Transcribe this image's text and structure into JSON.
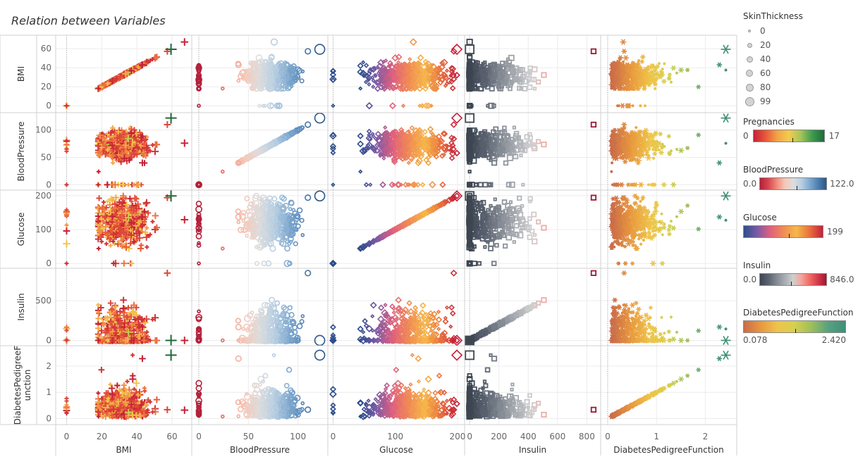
{
  "title": "Relation between Variables",
  "chart_data": {
    "type": "scatter",
    "subtype": "scatter-matrix",
    "variables": [
      {
        "name": "BMI",
        "domain": [
          -5,
          70
        ],
        "ticks": [
          0,
          20,
          40,
          60
        ],
        "shape": "plus",
        "color_field": "Pregnancies"
      },
      {
        "name": "BloodPressure",
        "domain": [
          -5,
          128
        ],
        "ticks": [
          0,
          50,
          100
        ],
        "shape": "circle",
        "color_field": "BloodPressure"
      },
      {
        "name": "Glucose",
        "domain": [
          -5,
          208
        ],
        "ticks": [
          0,
          100,
          200
        ],
        "shape": "diamond",
        "color_field": "Glucose"
      },
      {
        "name": "Insulin",
        "domain": [
          -20,
          880
        ],
        "ticks": [
          0,
          200,
          400,
          600,
          800
        ],
        "shape": "square",
        "color_field": "Insulin"
      },
      {
        "name": "DiabetesPedigreeFunction",
        "domain": [
          -0.1,
          2.6
        ],
        "ticks": [
          0,
          1,
          2
        ],
        "shape": "asterisk",
        "color_field": "DiabetesPedigreeFunction"
      }
    ],
    "row_ticks": {
      "BMI": [
        0,
        20,
        40,
        60
      ],
      "BloodPressure": [
        0,
        50,
        100
      ],
      "Glucose": [
        0,
        100,
        200
      ],
      "Insulin": [
        0,
        500
      ],
      "DiabetesPedigreeFunction": [
        0,
        1,
        2
      ]
    },
    "row_label_lines": {
      "BMI": [
        "BMI"
      ],
      "BloodPressure": [
        "BloodPressure"
      ],
      "Glucose": [
        "Glucose"
      ],
      "Insulin": [
        "Insulin"
      ],
      "DiabetesPedigreeFunction": [
        "DiabetesPedigreeF",
        "unction"
      ]
    },
    "sample_points": [
      {
        "BMI": 33.6,
        "BloodPressure": 72,
        "Glucose": 148,
        "Insulin": 0,
        "DiabetesPedigreeFunction": 0.627,
        "Pregnancies": 6,
        "SkinThickness": 35
      },
      {
        "BMI": 26.6,
        "BloodPressure": 66,
        "Glucose": 85,
        "Insulin": 0,
        "DiabetesPedigreeFunction": 0.351,
        "Pregnancies": 1,
        "SkinThickness": 29
      },
      {
        "BMI": 23.3,
        "BloodPressure": 64,
        "Glucose": 183,
        "Insulin": 0,
        "DiabetesPedigreeFunction": 0.672,
        "Pregnancies": 8,
        "SkinThickness": 0
      },
      {
        "BMI": 28.1,
        "BloodPressure": 66,
        "Glucose": 89,
        "Insulin": 94,
        "DiabetesPedigreeFunction": 0.167,
        "Pregnancies": 1,
        "SkinThickness": 23
      },
      {
        "BMI": 43.1,
        "BloodPressure": 40,
        "Glucose": 137,
        "Insulin": 168,
        "DiabetesPedigreeFunction": 2.288,
        "Pregnancies": 0,
        "SkinThickness": 35
      },
      {
        "BMI": 67.1,
        "BloodPressure": 76,
        "Glucose": 129,
        "Insulin": 0,
        "DiabetesPedigreeFunction": 0.319,
        "Pregnancies": 0,
        "SkinThickness": 46
      },
      {
        "BMI": 57.3,
        "BloodPressure": 110,
        "Glucose": 194,
        "Insulin": 846,
        "DiabetesPedigreeFunction": 0.337,
        "Pregnancies": 2,
        "SkinThickness": 36
      },
      {
        "BMI": 0,
        "BloodPressure": 0,
        "Glucose": 0,
        "Insulin": 0,
        "DiabetesPedigreeFunction": 0.232,
        "Pregnancies": 1,
        "SkinThickness": 0
      },
      {
        "BMI": 59.4,
        "BloodPressure": 122,
        "Glucose": 199,
        "Insulin": 0,
        "DiabetesPedigreeFunction": 2.42,
        "Pregnancies": 17,
        "SkinThickness": 99
      },
      {
        "BMI": 18.2,
        "BloodPressure": 24,
        "Glucose": 44,
        "Insulin": 0,
        "DiabetesPedigreeFunction": 0.078,
        "Pregnancies": 0,
        "SkinThickness": 0
      }
    ],
    "legends": {
      "size": {
        "field": "SkinThickness",
        "values": [
          "0",
          "20",
          "40",
          "60",
          "80",
          "99"
        ]
      },
      "Pregnancies": {
        "min": "0",
        "max": "17",
        "colors": [
          "#c42336",
          "#e8563a",
          "#f3a347",
          "#f2cc4d",
          "#a6c45a",
          "#3e9a4e",
          "#1f6b3a"
        ]
      },
      "BloodPressure": {
        "min": "0.0",
        "max": "122.0",
        "colors": [
          "#b3203a",
          "#d64450",
          "#ef8a78",
          "#f7c7b7",
          "#dddddd",
          "#b8cfe2",
          "#7fa8cf",
          "#4d7fb0",
          "#2c5789"
        ]
      },
      "Glucose": {
        "min": "0",
        "max": "199",
        "colors": [
          "#2e4d8c",
          "#7a5aa6",
          "#e0607e",
          "#f08b55",
          "#f6b84a",
          "#e9703e",
          "#c4203a"
        ]
      },
      "Insulin": {
        "min": "0.0",
        "max": "846.0",
        "colors": [
          "#3d4651",
          "#5a6270",
          "#848a93",
          "#a9adb3",
          "#d0d0d0",
          "#f4a39a",
          "#ef6a63",
          "#d3394a",
          "#a01732"
        ]
      },
      "DiabetesPedigreeFunction": {
        "min": "0.078",
        "max": "2.420",
        "colors": [
          "#c96b4a",
          "#e8983e",
          "#efc44a",
          "#d6cf4f",
          "#9cbf5b",
          "#55a181",
          "#3f8f78"
        ]
      }
    }
  }
}
